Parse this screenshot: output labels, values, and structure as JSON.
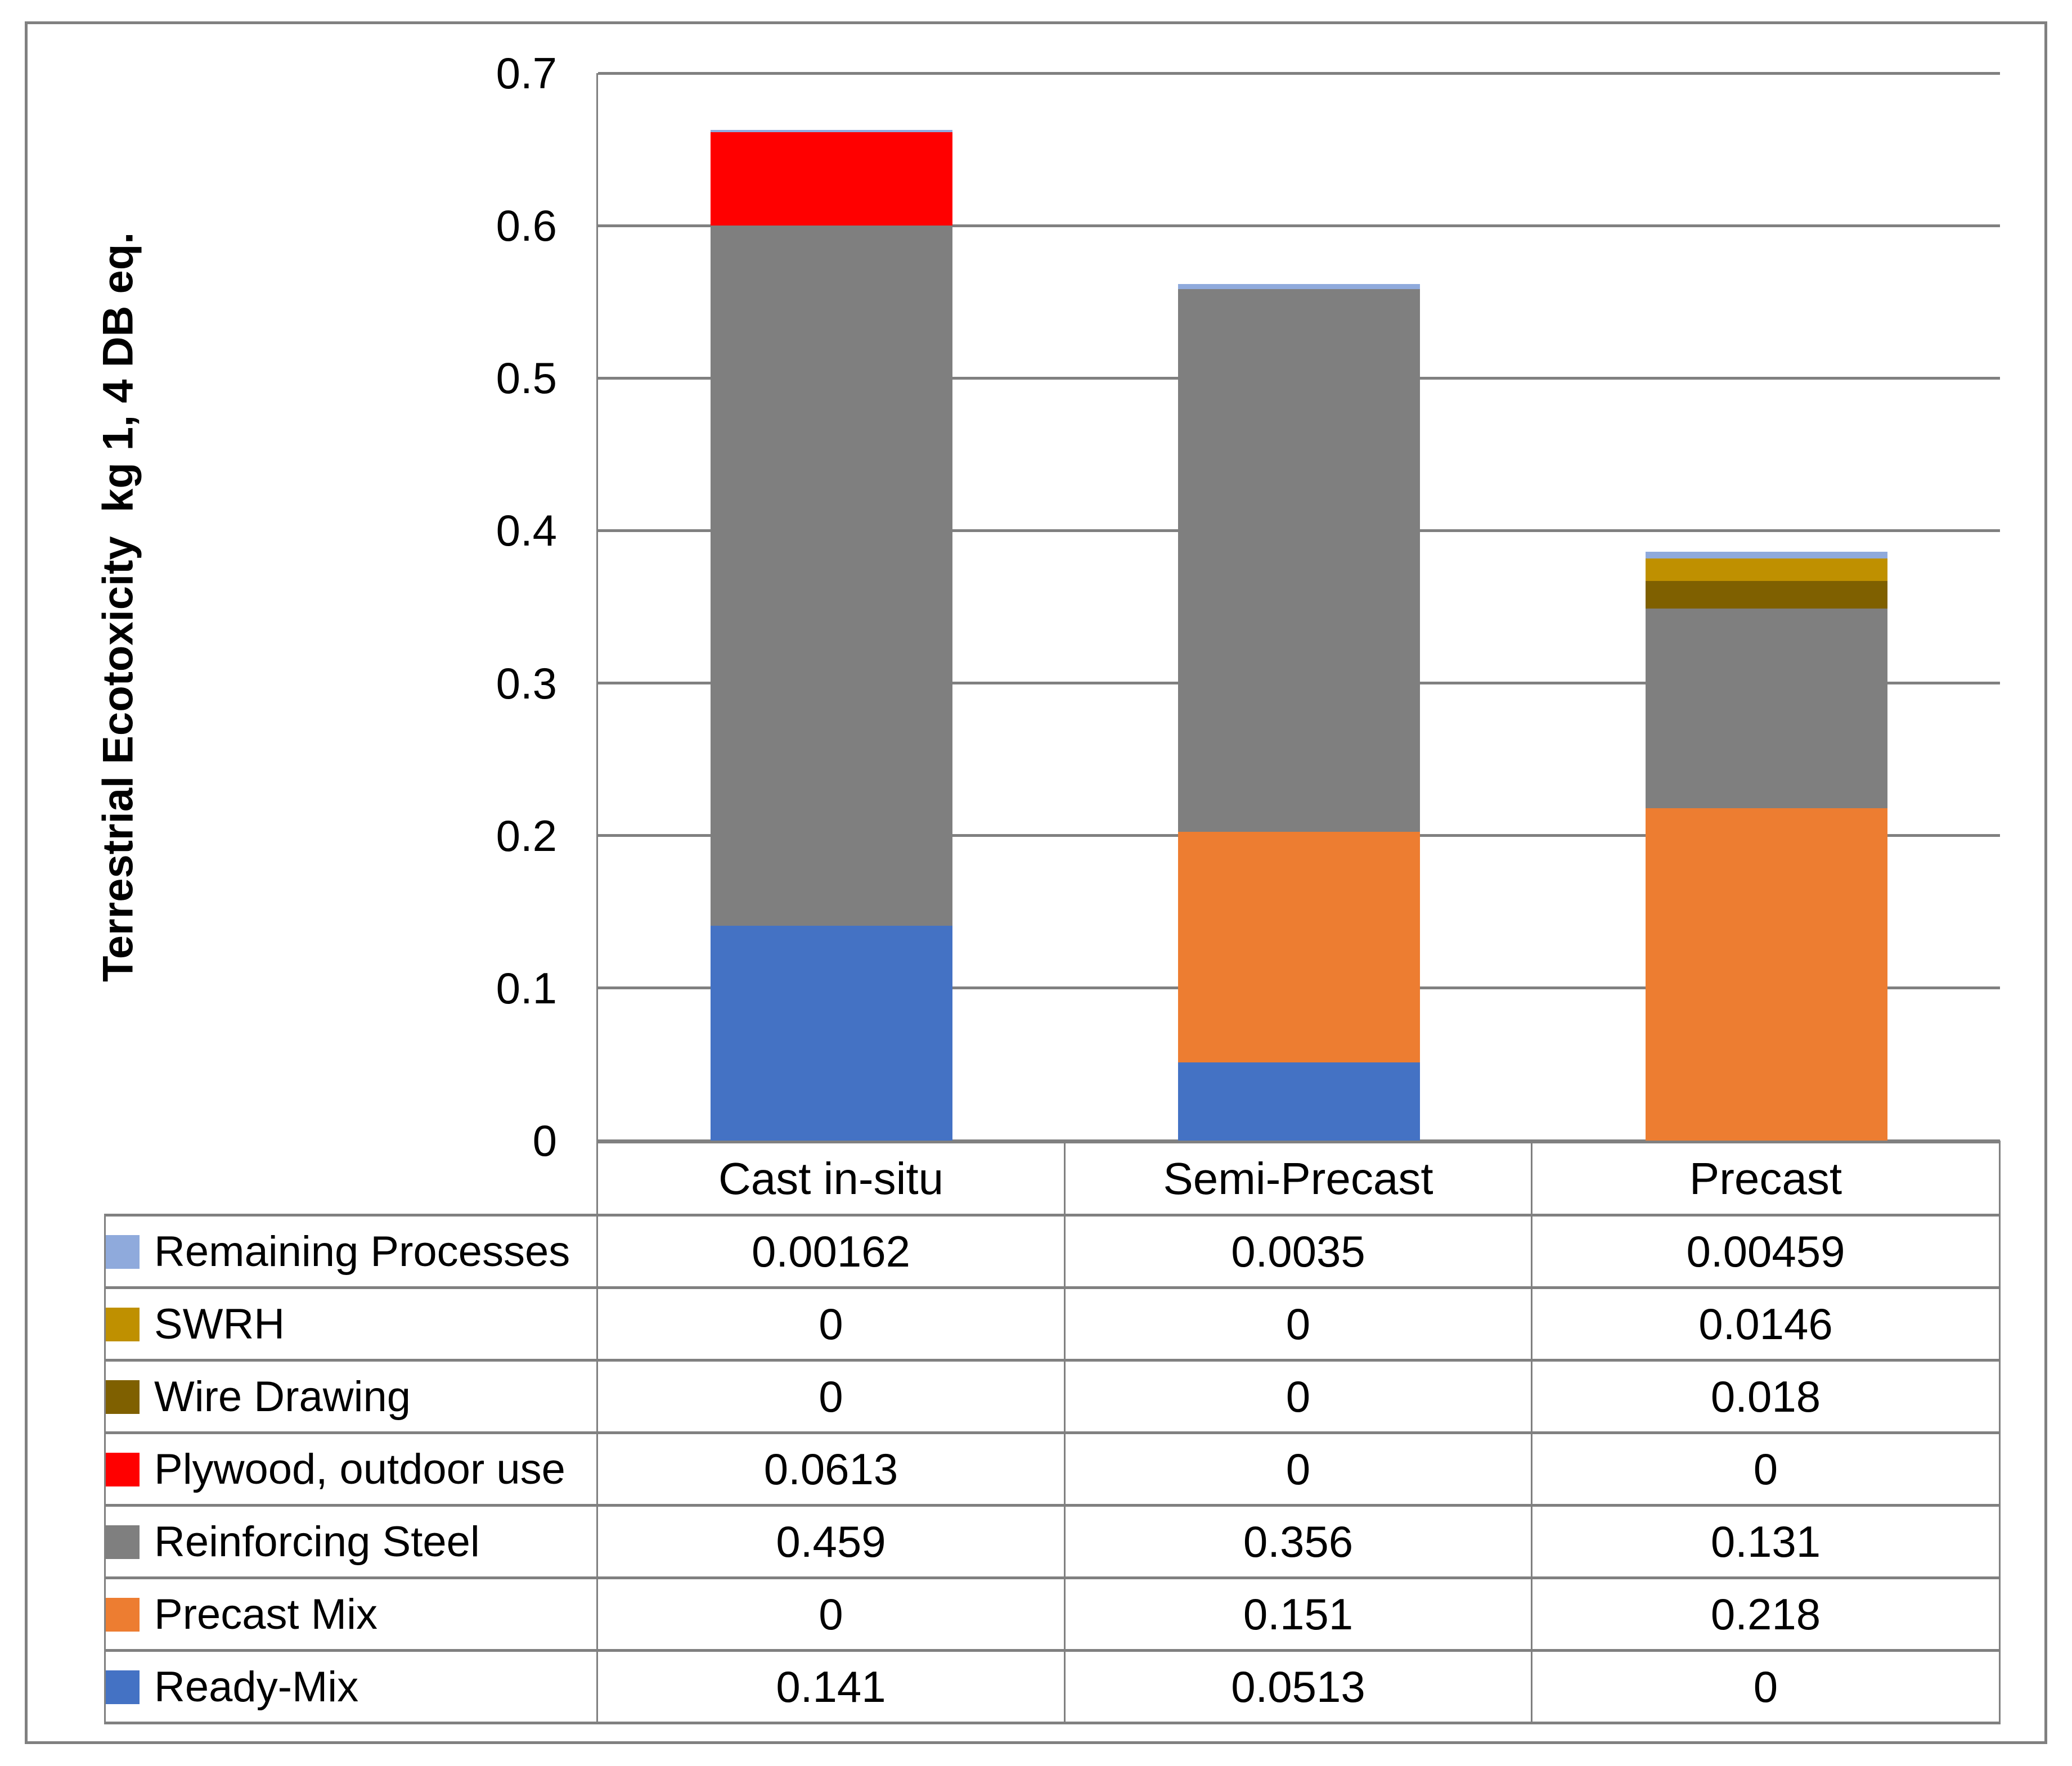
{
  "y_axis": {
    "title": "Terrestrial Ecotoxicity  kg 1, 4 DB eq.",
    "tick_labels": [
      "0",
      "0.1",
      "0.2",
      "0.3",
      "0.4",
      "0.5",
      "0.6",
      "0.7"
    ]
  },
  "chart_data": {
    "type": "bar",
    "stacked": true,
    "title": "",
    "xlabel": "",
    "ylabel": "Terrestrial Ecotoxicity  kg 1, 4 DB eq.",
    "ylim": [
      0,
      0.7
    ],
    "ytick_step": 0.1,
    "grid": true,
    "legend_position": "data-table-left-column",
    "categories": [
      "Cast in-situ",
      "Semi-Precast",
      "Precast"
    ],
    "series": [
      {
        "name": "Ready-Mix",
        "color": "#4472C4",
        "values": [
          0.141,
          0.0513,
          0
        ]
      },
      {
        "name": "Precast Mix",
        "color": "#ED7D31",
        "values": [
          0,
          0.151,
          0.218
        ]
      },
      {
        "name": "Reinforcing Steel",
        "color": "#7F7F7F",
        "values": [
          0.459,
          0.356,
          0.131
        ]
      },
      {
        "name": "Plywood, outdoor use",
        "color": "#FF0000",
        "values": [
          0.0613,
          0,
          0
        ]
      },
      {
        "name": "Wire Drawing",
        "color": "#7F6000",
        "values": [
          0,
          0,
          0.018
        ]
      },
      {
        "name": "SWRH",
        "color": "#BF9000",
        "values": [
          0,
          0,
          0.0146
        ]
      },
      {
        "name": "Remaining Processes",
        "color": "#8FAADC",
        "values": [
          0.00162,
          0.0035,
          0.00459
        ]
      }
    ]
  },
  "data_table": {
    "column_headers": [
      "Cast in-situ",
      "Semi-Precast",
      "Precast"
    ],
    "rows": [
      {
        "label": "Remaining Processes",
        "key_color": "#8FAADC",
        "values": [
          "0.00162",
          "0.0035",
          "0.00459"
        ]
      },
      {
        "label": "SWRH",
        "key_color": "#BF9000",
        "values": [
          "0",
          "0",
          "0.0146"
        ]
      },
      {
        "label": "Wire Drawing",
        "key_color": "#7F6000",
        "values": [
          "0",
          "0",
          "0.018"
        ]
      },
      {
        "label": "Plywood, outdoor use",
        "key_color": "#FF0000",
        "values": [
          "0.0613",
          "0",
          "0"
        ]
      },
      {
        "label": "Reinforcing Steel",
        "key_color": "#7F7F7F",
        "values": [
          "0.459",
          "0.356",
          "0.131"
        ]
      },
      {
        "label": "Precast Mix",
        "key_color": "#ED7D31",
        "values": [
          "0",
          "0.151",
          "0.218"
        ]
      },
      {
        "label": "Ready-Mix",
        "key_color": "#4472C4",
        "values": [
          "0.141",
          "0.0513",
          "0"
        ]
      }
    ]
  },
  "colors": {
    "gridline": "#808080",
    "table_border": "#808080",
    "text": "#000000",
    "background": "#FFFFFF"
  }
}
